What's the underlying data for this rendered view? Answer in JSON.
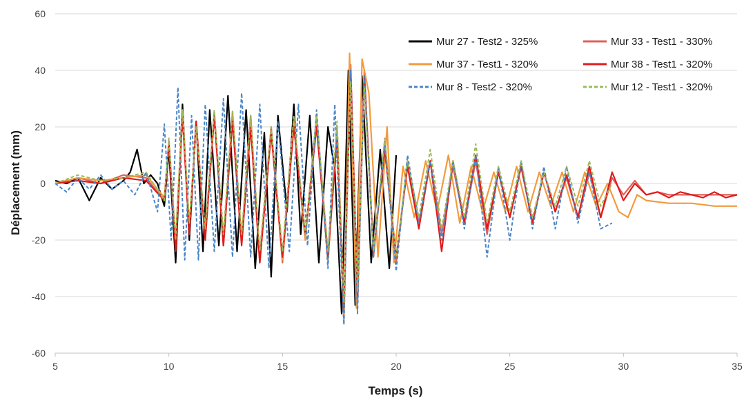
{
  "chart_data": {
    "type": "line",
    "xlabel": "Temps (s)",
    "ylabel": "Déplacement (mm)",
    "xlim": [
      5,
      35
    ],
    "ylim": [
      -60,
      60
    ],
    "xticks": [
      "5",
      "10",
      "15",
      "20",
      "25",
      "30",
      "35"
    ],
    "yticks": [
      "60",
      "40",
      "20",
      "0",
      "-20",
      "-40",
      "-60"
    ],
    "grid": "horizontal",
    "legend_position": "top-right",
    "series": [
      {
        "name": "Mur 27 - Test2 - 325%",
        "color": "#000000",
        "dash": "solid",
        "x": [
          5,
          5.5,
          6,
          6.5,
          7,
          7.5,
          8,
          8.3,
          8.6,
          8.9,
          9.2,
          9.5,
          9.8,
          10.0,
          10.3,
          10.6,
          10.9,
          11.2,
          11.5,
          11.8,
          12.2,
          12.6,
          13.0,
          13.4,
          13.8,
          14.2,
          14.5,
          14.8,
          15.2,
          15.5,
          15.8,
          16.2,
          16.6,
          17.0,
          17.3,
          17.6,
          17.9,
          18.2,
          18.5,
          18.9,
          19.3,
          19.7,
          20.0
        ],
        "y": [
          1,
          0,
          2,
          -6,
          2,
          -2,
          1,
          4,
          12,
          0,
          3,
          0,
          -8,
          12,
          -28,
          28,
          -20,
          22,
          -24,
          26,
          -22,
          31,
          -24,
          26,
          -30,
          18,
          -33,
          24,
          -10,
          28,
          -18,
          24,
          -28,
          20,
          5,
          -46,
          40,
          -43,
          38,
          -28,
          12,
          -30,
          10
        ]
      },
      {
        "name": "Mur 33 - Test1 - 330%",
        "color": "#e0605a",
        "dash": "solid",
        "x": [
          5,
          6,
          7,
          8,
          9,
          9.8,
          10.0,
          10.3,
          10.6,
          10.9,
          11.2,
          11.6,
          12.0,
          12.4,
          12.8,
          13.2,
          13.6,
          14.0,
          14.5,
          15.0,
          15.5,
          16.0,
          16.5,
          17.0,
          17.4,
          17.7,
          18.0,
          18.3,
          18.6,
          19.0,
          19.5,
          20.0,
          20.5,
          21.0,
          21.5,
          22.0,
          22.5,
          23.0,
          23.5,
          24.0,
          24.5,
          25.0,
          25.5,
          26.0,
          26.5,
          27.0,
          27.5,
          28.0,
          28.5,
          29.0,
          29.5,
          30.0,
          30.5,
          31.0,
          31.5,
          32.0,
          33.0,
          34.0,
          35.0
        ],
        "y": [
          0,
          2,
          0,
          3,
          2,
          -6,
          15,
          -22,
          25,
          -16,
          20,
          -18,
          25,
          -22,
          25,
          -20,
          24,
          -28,
          20,
          -28,
          22,
          -20,
          24,
          -26,
          18,
          -44,
          42,
          -42,
          40,
          -26,
          15,
          -28,
          8,
          -14,
          8,
          -18,
          6,
          -14,
          8,
          -18,
          4,
          -12,
          6,
          -14,
          4,
          -10,
          2,
          -12,
          4,
          -12,
          2,
          -4,
          1,
          -4,
          -3,
          -4,
          -4,
          -4,
          -4
        ]
      },
      {
        "name": "Mur 37 - Test1 - 320%",
        "color": "#f39a3d",
        "dash": "solid",
        "x": [
          5,
          6,
          7,
          8,
          9,
          9.8,
          10.0,
          10.3,
          10.6,
          10.9,
          11.2,
          11.6,
          12.0,
          12.4,
          12.8,
          13.2,
          13.6,
          14.0,
          14.5,
          15.0,
          15.5,
          16.0,
          16.5,
          17.0,
          17.4,
          17.7,
          17.95,
          18.25,
          18.5,
          18.8,
          19.2,
          19.6,
          19.9,
          20.3,
          20.8,
          21.3,
          21.8,
          22.3,
          22.8,
          23.3,
          23.8,
          24.3,
          24.8,
          25.3,
          25.8,
          26.3,
          26.8,
          27.3,
          27.8,
          28.3,
          28.8,
          29.3,
          29.8,
          30.2,
          30.6,
          31.0,
          32.0,
          33.0,
          34.0,
          35.0
        ],
        "y": [
          0,
          2,
          1,
          2,
          3,
          -5,
          14,
          -20,
          26,
          -15,
          20,
          -18,
          24,
          -20,
          24,
          -21,
          22,
          -26,
          18,
          -27,
          22,
          -20,
          22,
          -28,
          20,
          -49,
          46,
          -44,
          44,
          32,
          -26,
          20,
          -28,
          6,
          -12,
          8,
          -10,
          10,
          -14,
          6,
          -10,
          4,
          -10,
          6,
          -10,
          4,
          -8,
          4,
          -10,
          4,
          -8,
          0,
          -10,
          -12,
          -4,
          -6,
          -7,
          -7,
          -8,
          -8
        ]
      },
      {
        "name": "Mur 38 - Test1 - 320%",
        "color": "#e01b1b",
        "dash": "solid",
        "x": [
          5,
          6,
          7,
          8,
          9,
          9.8,
          10.0,
          10.3,
          10.6,
          10.9,
          11.2,
          11.6,
          12.0,
          12.4,
          12.8,
          13.2,
          13.6,
          14.0,
          14.5,
          15.0,
          15.5,
          16.0,
          16.5,
          17.0,
          17.4,
          17.7,
          18.0,
          18.3,
          18.6,
          19.0,
          19.5,
          20.0,
          20.5,
          21.0,
          21.5,
          22.0,
          22.5,
          23.0,
          23.5,
          24.0,
          24.5,
          25.0,
          25.5,
          26.0,
          26.5,
          27.0,
          27.5,
          28.0,
          28.5,
          29.0,
          29.5,
          30.0,
          30.5,
          31.0,
          31.5,
          32.0,
          32.5,
          33.0,
          33.5,
          34.0,
          34.5,
          35.0
        ],
        "y": [
          0,
          1,
          0,
          2,
          1,
          -6,
          14,
          -24,
          24,
          -18,
          22,
          -20,
          24,
          -22,
          22,
          -22,
          20,
          -28,
          18,
          -26,
          20,
          -18,
          20,
          -26,
          16,
          -44,
          40,
          -40,
          38,
          -24,
          12,
          -26,
          6,
          -16,
          8,
          -24,
          8,
          -14,
          10,
          -16,
          4,
          -12,
          6,
          -14,
          4,
          -10,
          3,
          -12,
          6,
          -12,
          4,
          -6,
          0,
          -4,
          -3,
          -5,
          -3,
          -4,
          -5,
          -3,
          -5,
          -4
        ]
      },
      {
        "name": "Mur 8 - Test2 - 320%",
        "color": "#4a86c8",
        "dash": "dashed",
        "x": [
          5,
          5.5,
          6,
          6.5,
          7,
          7.5,
          8,
          8.5,
          9,
          9.5,
          9.8,
          10.1,
          10.4,
          10.7,
          11.0,
          11.3,
          11.6,
          12.0,
          12.4,
          12.8,
          13.2,
          13.6,
          14.0,
          14.4,
          14.8,
          15.3,
          15.7,
          16.1,
          16.5,
          17.0,
          17.3,
          17.7,
          18.0,
          18.3,
          18.6,
          19.0,
          19.5,
          20.0,
          20.5,
          21.0,
          21.5,
          22.0,
          22.5,
          23.0,
          23.5,
          24.0,
          24.5,
          25.0,
          25.5,
          26.0,
          26.5,
          27.0,
          27.5,
          28.0,
          28.5,
          29.0,
          29.5
        ],
        "y": [
          0,
          -3,
          2,
          -2,
          3,
          -2,
          1,
          -4,
          4,
          -10,
          21,
          -20,
          34,
          -27,
          24,
          -27,
          28,
          -24,
          30,
          -26,
          32,
          -26,
          28,
          -30,
          22,
          -24,
          28,
          -22,
          26,
          -30,
          28,
          -50,
          40,
          -46,
          38,
          -26,
          14,
          -31,
          10,
          -14,
          8,
          -20,
          8,
          -16,
          10,
          -26,
          6,
          -20,
          8,
          -16,
          6,
          -16,
          6,
          -14,
          4,
          -16,
          -14
        ]
      },
      {
        "name": "Mur 12 - Test1 - 320%",
        "color": "#9bbb59",
        "dash": "dashed",
        "x": [
          5,
          6,
          7,
          8,
          9,
          9.8,
          10.0,
          10.3,
          10.6,
          10.9,
          11.2,
          11.6,
          12.0,
          12.4,
          12.8,
          13.2,
          13.6,
          14.0,
          14.5,
          15.0,
          15.5,
          16.0,
          16.5,
          17.0,
          17.4,
          17.7,
          18.0,
          18.3,
          18.6,
          19.0,
          19.5,
          20.0,
          20.5,
          21.0,
          21.5,
          22.0,
          22.5,
          23.0,
          23.5,
          24.0,
          24.5,
          25.0,
          25.5,
          26.0,
          26.5,
          27.0,
          27.5,
          28.0,
          28.5,
          29.0,
          29.5
        ],
        "y": [
          0,
          3,
          1,
          2,
          4,
          -6,
          16,
          -20,
          26,
          -14,
          20,
          -16,
          26,
          -18,
          26,
          -18,
          24,
          -24,
          20,
          -24,
          24,
          -18,
          24,
          -24,
          22,
          -42,
          36,
          -38,
          34,
          -24,
          16,
          -26,
          8,
          -12,
          12,
          -16,
          8,
          -12,
          14,
          -14,
          6,
          -10,
          8,
          -12,
          4,
          -8,
          6,
          -8,
          8,
          -8,
          0
        ]
      }
    ]
  }
}
